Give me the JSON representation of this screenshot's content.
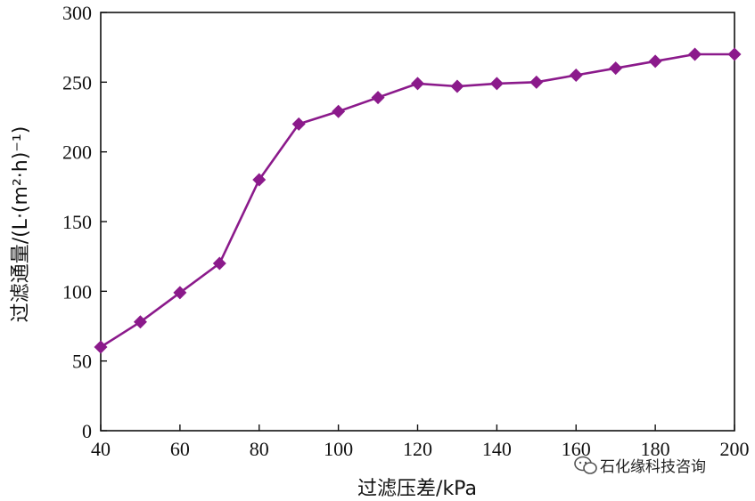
{
  "chart_data": {
    "type": "line",
    "xlabel": "过滤压差/kPa",
    "ylabel": "过滤通量/(L·(m²·h)⁻¹)",
    "xlim": [
      40,
      200
    ],
    "ylim": [
      0,
      300
    ],
    "xticks": [
      "40",
      "60",
      "80",
      "100",
      "120",
      "140",
      "160",
      "180",
      "200"
    ],
    "yticks": [
      "0",
      "50",
      "100",
      "150",
      "200",
      "250",
      "300"
    ],
    "grid": false,
    "marker": "diamond",
    "line_color": "#8B1A8B",
    "series": [
      {
        "x": [
          40,
          50,
          60,
          70,
          80,
          90,
          100,
          110,
          120,
          130,
          140,
          150,
          160,
          170,
          180,
          190,
          200
        ],
        "values": [
          60,
          78,
          99,
          120,
          180,
          220,
          229,
          239,
          249,
          247,
          249,
          250,
          255,
          260,
          265,
          270,
          270
        ]
      }
    ]
  },
  "watermark": {
    "icon": "wechat-icon",
    "text": "石化缘科技咨询"
  }
}
